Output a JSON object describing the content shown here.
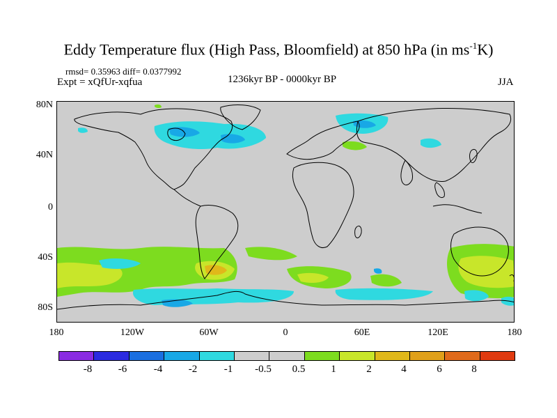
{
  "title": {
    "main": "Eddy Temperature flux (High Pass, Bloomfield) at 850 hPa (in ms",
    "sup": "-1",
    "end": "K)"
  },
  "stats": "rmsd= 0.35963 diff= 0.0377992",
  "expt": "Expt = xQfUr-xqfua",
  "period": "1236kyr BP - 0000kyr BP",
  "season": "JJA",
  "map": {
    "lat_labels": [
      "80N",
      "40N",
      "0",
      "40S",
      "80S"
    ],
    "lon_labels": [
      "180",
      "120W",
      "60W",
      "0",
      "60E",
      "120E",
      "180"
    ]
  },
  "colorbar": {
    "colors": [
      "#8a2be2",
      "#2b2be0",
      "#1a6fe0",
      "#18a8e6",
      "#2fd9e0",
      "#cdcdcd",
      "#cdcdcd",
      "#7ddc1f",
      "#c8e62a",
      "#e0b81a",
      "#e0a01a",
      "#e06a1a",
      "#e03a10"
    ],
    "labels": [
      "-8",
      "-6",
      "-4",
      "-2",
      "-1",
      "-0.5",
      "0.5",
      "1",
      "2",
      "4",
      "6",
      "8"
    ]
  }
}
